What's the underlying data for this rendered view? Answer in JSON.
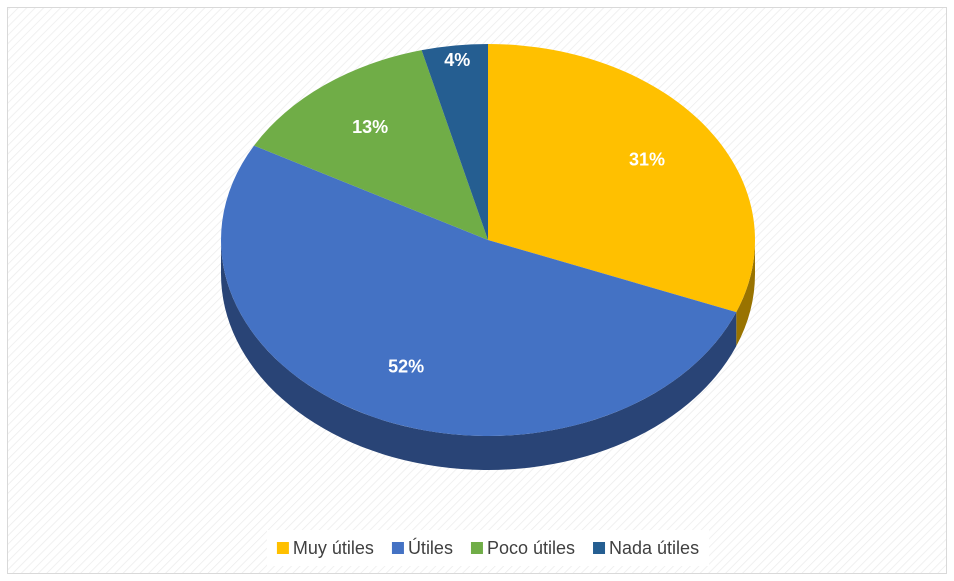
{
  "chart_data": {
    "type": "pie",
    "categories": [
      "Muy útiles",
      "Útiles",
      "Poco útiles",
      "Nada útiles"
    ],
    "values": [
      31,
      52,
      13,
      4
    ],
    "value_labels": [
      "31%",
      "52%",
      "13%",
      "4%"
    ],
    "colors": [
      "#FFC000",
      "#4472C4",
      "#70AD47",
      "#255E91"
    ],
    "legend": "bottom"
  }
}
